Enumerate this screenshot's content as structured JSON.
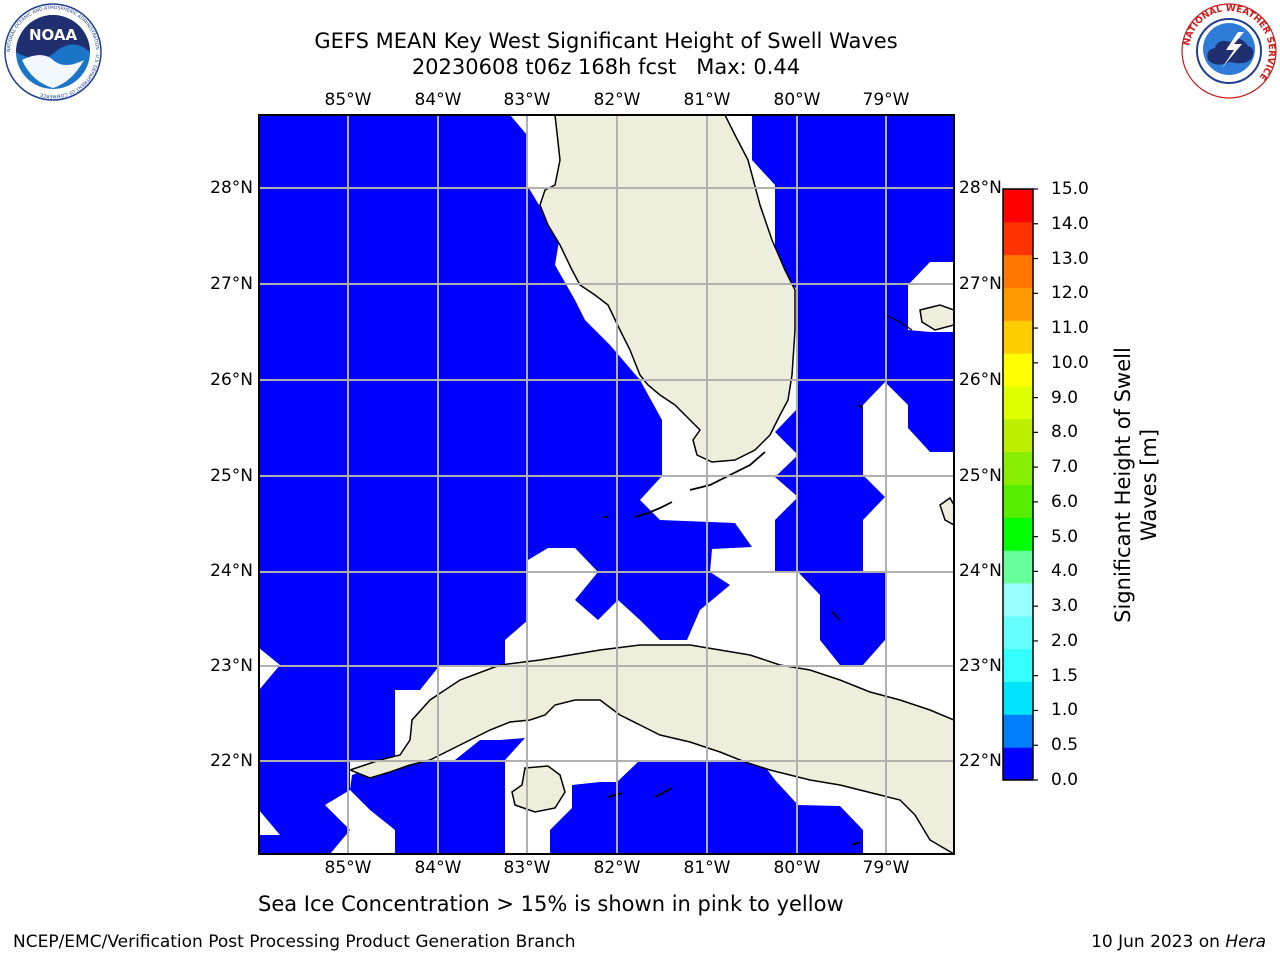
{
  "title_line1": "GEFS MEAN Key West Significant Height of Swell Waves",
  "title_line2": "20230608 t06z 168h fcst   Max: 0.44",
  "lon_labels": [
    "85°W",
    "84°W",
    "83°W",
    "82°W",
    "81°W",
    "80°W",
    "79°W"
  ],
  "lat_labels": [
    "28°N",
    "27°N",
    "26°N",
    "25°N",
    "24°N",
    "23°N",
    "22°N"
  ],
  "colorbar": {
    "title_line1": "Significant Height of Swell",
    "title_line2": "Waves [m]",
    "ticks": [
      "0.0",
      "0.5",
      "1.0",
      "1.5",
      "2.0",
      "3.0",
      "4.0",
      "5.0",
      "6.0",
      "7.0",
      "8.0",
      "9.0",
      "10.0",
      "11.0",
      "12.0",
      "13.0",
      "14.0",
      "15.0"
    ],
    "colors": [
      "#0000ff",
      "#0080ff",
      "#00e5ff",
      "#33ffff",
      "#66ffff",
      "#99ffff",
      "#66ff99",
      "#00ff00",
      "#55ee00",
      "#88ee00",
      "#bbee00",
      "#ddff00",
      "#ffff00",
      "#ffcc00",
      "#ff9900",
      "#ff7700",
      "#ff3300",
      "#ff0000"
    ]
  },
  "legend_note": "Sea Ice Concentration > 15% is shown in pink to yellow",
  "footer_left": "NCEP/EMC/Verification Post Processing Product Generation Branch",
  "footer_date": "10 Jun 2023 on ",
  "footer_host": "Hera",
  "logos": {
    "noaa_text": "NOAA",
    "noaa_ring": "NATIONAL OCEANIC AND ATMOSPHERIC ADMINISTRATION · U.S. DEPARTMENT OF COMMERCE",
    "nws_ring": "NATIONAL WEATHER SERVICE"
  },
  "colors": {
    "ocean": "#0000ff",
    "land": "#eeeedc",
    "grid": "#b0b0b0"
  }
}
